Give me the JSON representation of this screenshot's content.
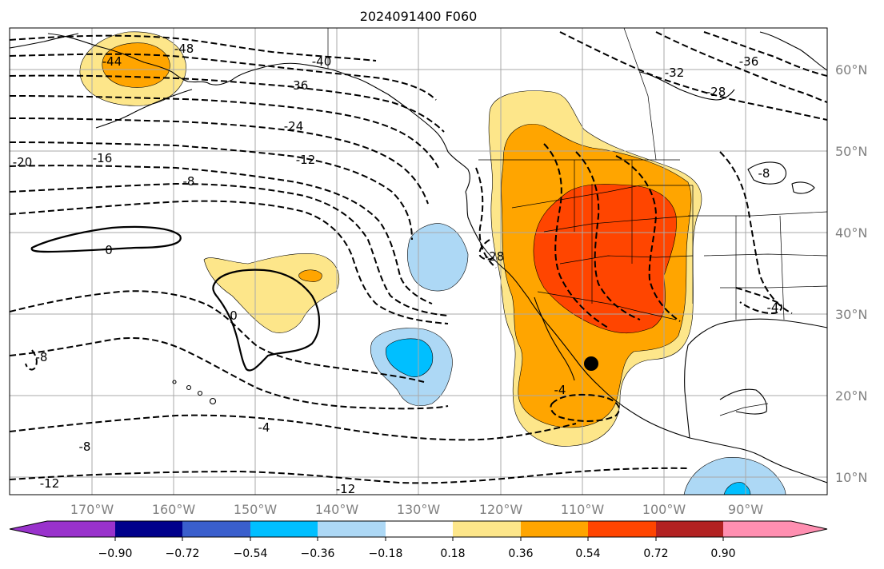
{
  "title": "2024091400 F060",
  "colors": {
    "n090": "#9932cc",
    "n072": "#00008b",
    "n054": "#3a5fcd",
    "n036": "#00bfff",
    "n018": "#add8f5",
    "zero": "#ffffff",
    "p018": "#fde68a",
    "p036": "#ffa500",
    "p054": "#ff4500",
    "p072": "#b22222",
    "p090": "#ff8fb1"
  },
  "lon_ticks": [
    "170°W",
    "160°W",
    "150°W",
    "140°W",
    "130°W",
    "120°W",
    "110°W",
    "100°W",
    "90°W"
  ],
  "lat_ticks": [
    "60°N",
    "50°N",
    "40°N",
    "30°N",
    "20°N",
    "10°N"
  ],
  "colorbar_ticks": [
    "−0.90",
    "−0.72",
    "−0.54",
    "−0.36",
    "−0.18",
    "0.18",
    "0.36",
    "0.54",
    "0.72",
    "0.90"
  ],
  "contour_labels": [
    "-48",
    "-44",
    "-40",
    "-36",
    "-36",
    "-32",
    "-28",
    "-24",
    "-20",
    "-16",
    "-12",
    "-8",
    "0",
    "0",
    "-28",
    "-8",
    "-4",
    "-8",
    "-12",
    "-12",
    "-4",
    "-8",
    "-4"
  ],
  "marker": "black-dot"
}
